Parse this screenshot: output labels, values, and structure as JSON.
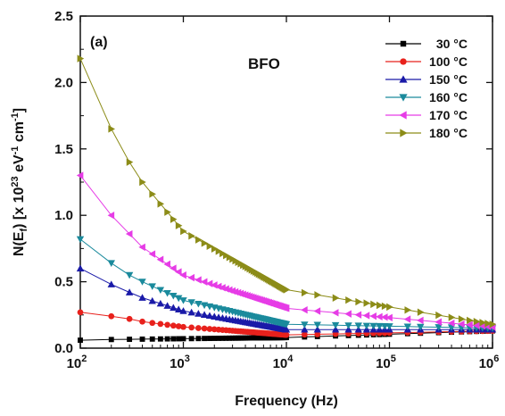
{
  "chart_data": {
    "type": "scatter",
    "panel_label": "(a)",
    "title": "BFO",
    "xlabel": "Frequency (Hz)",
    "ylabel": {
      "prefix": "N(E",
      "sub": "f",
      "mid": ") [x 10",
      "sup1": "23",
      "mid2": " eV",
      "sup2": "-1",
      "mid3": " cm",
      "sup3": "-1",
      "suffix": "]"
    },
    "x_scale": "log",
    "xlim": [
      100,
      1000000
    ],
    "ylim": [
      0,
      2.5
    ],
    "x_ticks": [
      {
        "base": "10",
        "exp": "2",
        "value": 100
      },
      {
        "base": "10",
        "exp": "3",
        "value": 1000
      },
      {
        "base": "10",
        "exp": "4",
        "value": 10000
      },
      {
        "base": "10",
        "exp": "5",
        "value": 100000
      },
      {
        "base": "10",
        "exp": "6",
        "value": 1000000
      }
    ],
    "y_ticks": [
      "0.0",
      "0.5",
      "1.0",
      "1.5",
      "2.0",
      "2.5"
    ],
    "legend_position": "top-right",
    "series": [
      {
        "name": "30 °C",
        "color": "#000000",
        "marker": "square",
        "points": [
          [
            100,
            0.06
          ],
          [
            200,
            0.065
          ],
          [
            10000,
            0.08
          ],
          [
            1000000,
            0.13
          ]
        ]
      },
      {
        "name": "100 °C",
        "color": "#e8211c",
        "marker": "circle",
        "points": [
          [
            100,
            0.27
          ],
          [
            200,
            0.24
          ],
          [
            300,
            0.22
          ],
          [
            400,
            0.2
          ],
          [
            1000,
            0.16
          ],
          [
            10000,
            0.1
          ],
          [
            1000000,
            0.13
          ]
        ]
      },
      {
        "name": "150 °C",
        "color": "#1a1aa8",
        "marker": "triangle-up",
        "points": [
          [
            100,
            0.6
          ],
          [
            200,
            0.48
          ],
          [
            300,
            0.42
          ],
          [
            400,
            0.38
          ],
          [
            1000,
            0.28
          ],
          [
            10000,
            0.14
          ],
          [
            1000000,
            0.14
          ]
        ]
      },
      {
        "name": "160 °C",
        "color": "#1a8a9c",
        "marker": "triangle-down",
        "points": [
          [
            100,
            0.82
          ],
          [
            200,
            0.64
          ],
          [
            300,
            0.55
          ],
          [
            400,
            0.5
          ],
          [
            1000,
            0.36
          ],
          [
            10000,
            0.18
          ],
          [
            1000000,
            0.15
          ]
        ]
      },
      {
        "name": "170 °C",
        "color": "#e63ce6",
        "marker": "triangle-left",
        "points": [
          [
            100,
            1.3
          ],
          [
            200,
            1.0
          ],
          [
            300,
            0.86
          ],
          [
            400,
            0.76
          ],
          [
            1000,
            0.55
          ],
          [
            10000,
            0.3
          ],
          [
            1000000,
            0.16
          ]
        ]
      },
      {
        "name": "180 °C",
        "color": "#8c8c18",
        "marker": "triangle-right",
        "points": [
          [
            100,
            2.18
          ],
          [
            200,
            1.65
          ],
          [
            300,
            1.4
          ],
          [
            400,
            1.25
          ],
          [
            1000,
            0.88
          ],
          [
            10000,
            0.44
          ],
          [
            1000000,
            0.18
          ]
        ]
      }
    ]
  }
}
